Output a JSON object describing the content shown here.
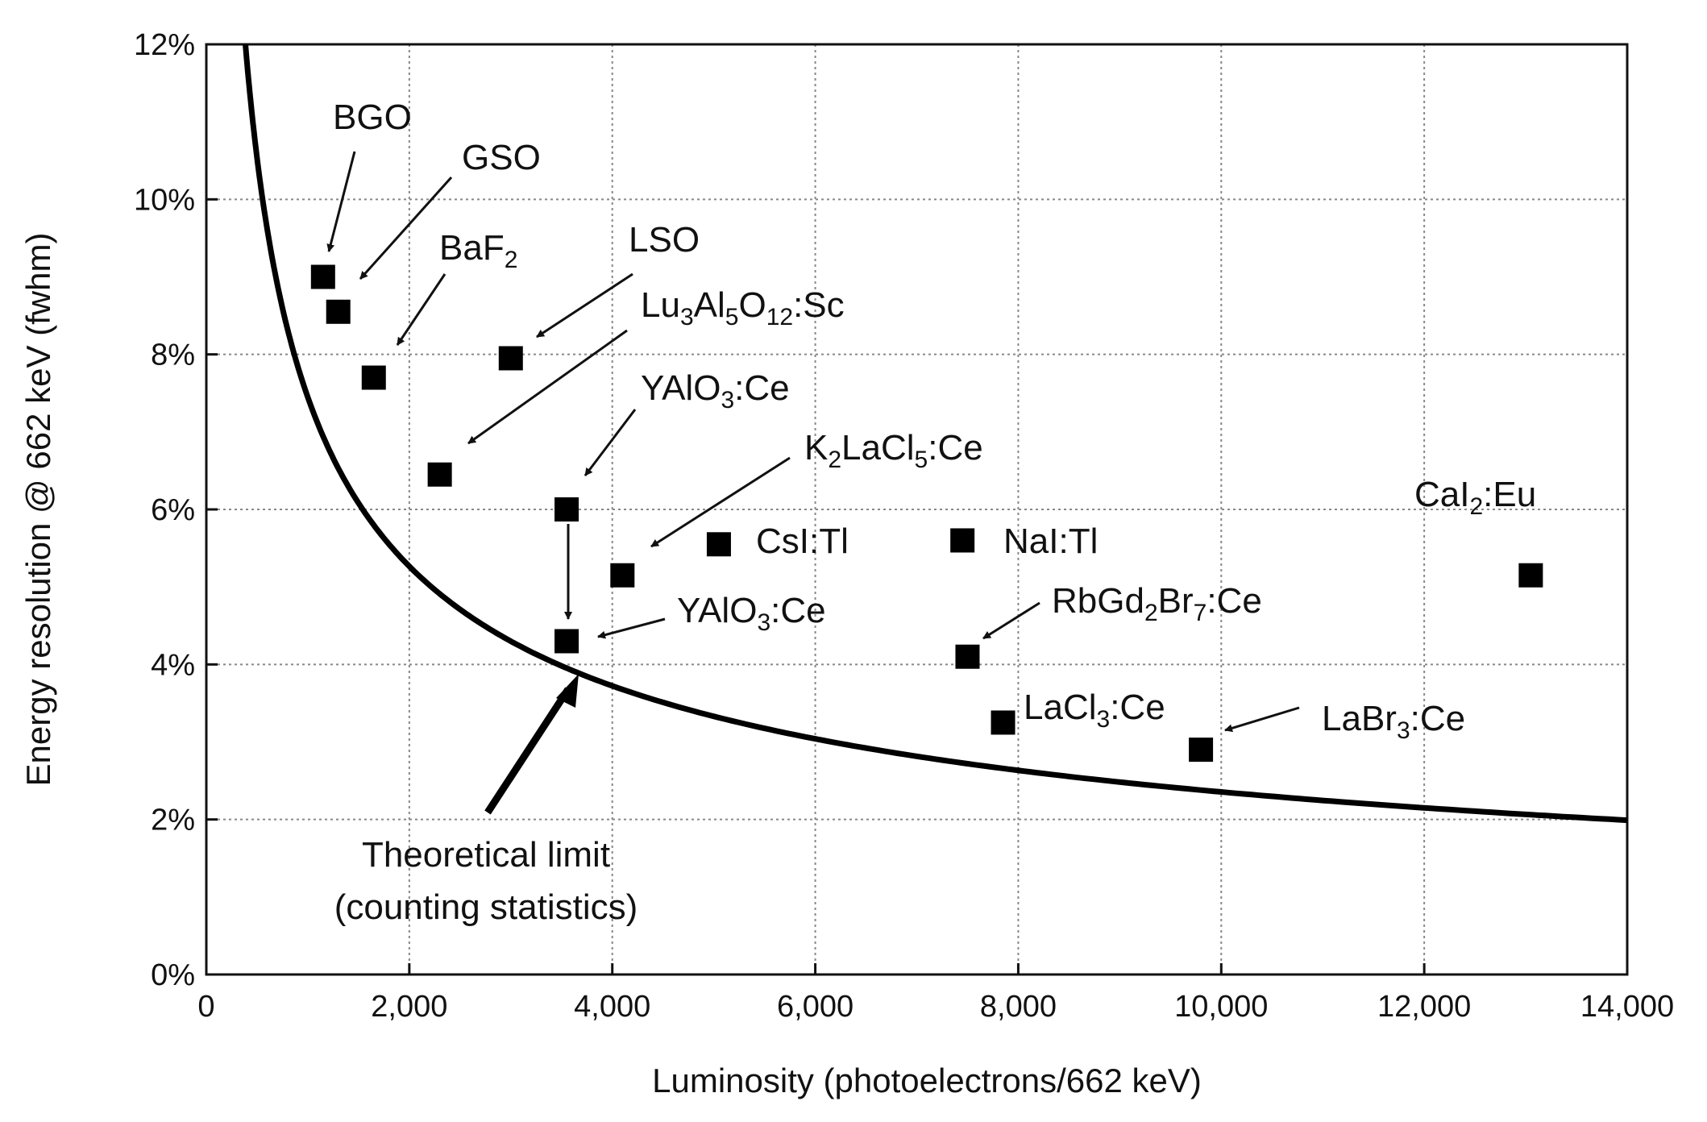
{
  "chart_data": {
    "type": "scatter",
    "title": "",
    "xlabel": "Luminosity (photoelectrons/662 keV)",
    "ylabel": "Energy resolution @ 662 keV (fwhm)",
    "xlim": [
      0,
      14000
    ],
    "ylim": [
      0,
      12
    ],
    "grid": true,
    "x_ticks": [
      "0",
      "2,000",
      "4,000",
      "6,000",
      "8,000",
      "10,000",
      "12,000",
      "14,000"
    ],
    "x_tick_values": [
      0,
      2000,
      4000,
      6000,
      8000,
      10000,
      12000,
      14000
    ],
    "y_ticks": [
      "0%",
      "2%",
      "4%",
      "6%",
      "8%",
      "10%",
      "12%"
    ],
    "y_tick_values": [
      0,
      2,
      4,
      6,
      8,
      10,
      12
    ],
    "points": [
      {
        "x": 1150,
        "y": 9.0,
        "label": "BGO"
      },
      {
        "x": 1300,
        "y": 8.55,
        "label": "GSO"
      },
      {
        "x": 1650,
        "y": 7.7,
        "label": "BaF2"
      },
      {
        "x": 3000,
        "y": 7.95,
        "label": "LSO"
      },
      {
        "x": 2300,
        "y": 6.45,
        "label": "Lu3Al5O12:Sc"
      },
      {
        "x": 3550,
        "y": 6.0,
        "label": "YAlO3:Ce"
      },
      {
        "x": 4100,
        "y": 5.15,
        "label": "K2LaCl5:Ce"
      },
      {
        "x": 5050,
        "y": 5.55,
        "label": "CsI:Tl"
      },
      {
        "x": 7450,
        "y": 5.6,
        "label": "NaI:Tl"
      },
      {
        "x": 3550,
        "y": 4.3,
        "label": "YAlO3:Ce"
      },
      {
        "x": 7500,
        "y": 4.1,
        "label": "RbGd2Br7:Ce"
      },
      {
        "x": 7850,
        "y": 3.25,
        "label": "LaCl3:Ce"
      },
      {
        "x": 9800,
        "y": 2.9,
        "label": "LaBr3:Ce"
      },
      {
        "x": 13050,
        "y": 5.15,
        "label": "CaI2:Eu"
      }
    ],
    "theoretical_limit": {
      "formula": "y = 235.5 / sqrt(x)",
      "label_line1": "Theoretical limit",
      "label_line2": "(counting statistics)"
    }
  },
  "labels": {
    "bgo": "BGO",
    "gso": "GSO",
    "baf2_main": "BaF",
    "baf2_sub": "2",
    "lso": "LSO",
    "luag_a": "Lu",
    "luag_s1": "3",
    "luag_b": "Al",
    "luag_s2": "5",
    "luag_c": "O",
    "luag_s3": "12",
    "luag_d": ":Sc",
    "yap1_a": "YAlO",
    "yap1_s": "3",
    "yap1_b": ":Ce",
    "klc_a": "K",
    "klc_s1": "2",
    "klc_b": "LaCl",
    "klc_s2": "5",
    "klc_c": ":Ce",
    "csi": "CsI:Tl",
    "nai": "NaI:Tl",
    "cai_a": "CaI",
    "cai_s": "2",
    "cai_b": ":Eu",
    "yap2_a": "YAlO",
    "yap2_s": "3",
    "yap2_b": ":Ce",
    "rgb_a": "RbGd",
    "rgb_s1": "2",
    "rgb_b": "Br",
    "rgb_s2": "7",
    "rgb_c": ":Ce",
    "lacl_a": "LaCl",
    "lacl_s": "3",
    "lacl_b": ":Ce",
    "labr_a": "LaBr",
    "labr_s": "3",
    "labr_b": ":Ce"
  }
}
